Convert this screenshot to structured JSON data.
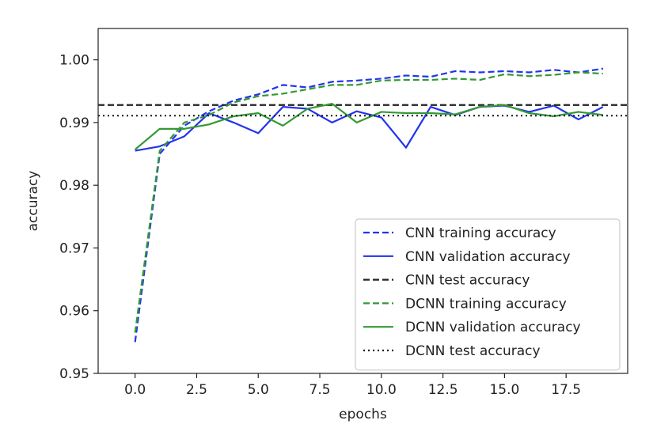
{
  "chart_data": {
    "type": "line",
    "xlabel": "epochs",
    "ylabel": "accuracy",
    "xlim": [
      -1.5,
      20
    ],
    "ylim": [
      0.95,
      1.005
    ],
    "xticks": [
      0.0,
      2.5,
      5.0,
      7.5,
      10.0,
      12.5,
      15.0,
      17.5
    ],
    "xtick_labels": [
      "0.0",
      "2.5",
      "5.0",
      "7.5",
      "10.0",
      "12.5",
      "15.0",
      "17.5"
    ],
    "yticks": [
      0.95,
      0.96,
      0.97,
      0.98,
      0.99,
      1.0
    ],
    "ytick_labels": [
      "0.95",
      "0.96",
      "0.97",
      "0.98",
      "0.99",
      "1.00"
    ],
    "grid": false,
    "legend_position": "lower right",
    "x": [
      0,
      1,
      2,
      3,
      4,
      5,
      6,
      7,
      8,
      9,
      10,
      11,
      12,
      13,
      14,
      15,
      16,
      17,
      18,
      19
    ],
    "series": [
      {
        "name": "CNN training accuracy",
        "color": "#2233ee",
        "linestyle": "dashed",
        "values": [
          0.955,
          0.985,
          0.9895,
          0.9918,
          0.9935,
          0.9945,
          0.996,
          0.9956,
          0.9965,
          0.9967,
          0.997,
          0.9975,
          0.9973,
          0.9982,
          0.998,
          0.9982,
          0.998,
          0.9984,
          0.998,
          0.9986
        ]
      },
      {
        "name": "CNN validation accuracy",
        "color": "#2233ee",
        "linestyle": "solid",
        "values": [
          0.9855,
          0.9862,
          0.9878,
          0.9915,
          0.99,
          0.9883,
          0.9925,
          0.9922,
          0.99,
          0.9918,
          0.9908,
          0.986,
          0.9925,
          0.9912,
          0.9925,
          0.9927,
          0.9917,
          0.9927,
          0.9905,
          0.9925
        ]
      },
      {
        "name": "CNN test accuracy",
        "color": "#222222",
        "linestyle": "dashed",
        "constant": 0.9928
      },
      {
        "name": "DCNN training accuracy",
        "color": "#339933",
        "linestyle": "dashed",
        "values": [
          0.9565,
          0.9855,
          0.99,
          0.9912,
          0.9932,
          0.9942,
          0.9946,
          0.9953,
          0.996,
          0.996,
          0.9967,
          0.9968,
          0.9968,
          0.997,
          0.9968,
          0.9977,
          0.9974,
          0.9976,
          0.998,
          0.9978
        ]
      },
      {
        "name": "DCNN validation accuracy",
        "color": "#339933",
        "linestyle": "solid",
        "values": [
          0.9857,
          0.989,
          0.989,
          0.9897,
          0.991,
          0.9915,
          0.9895,
          0.9922,
          0.993,
          0.99,
          0.9917,
          0.9915,
          0.9915,
          0.9913,
          0.9925,
          0.9928,
          0.9915,
          0.991,
          0.9917,
          0.9912
        ]
      },
      {
        "name": "DCNN test accuracy",
        "color": "#222222",
        "linestyle": "dotted",
        "constant": 0.9911
      }
    ]
  }
}
